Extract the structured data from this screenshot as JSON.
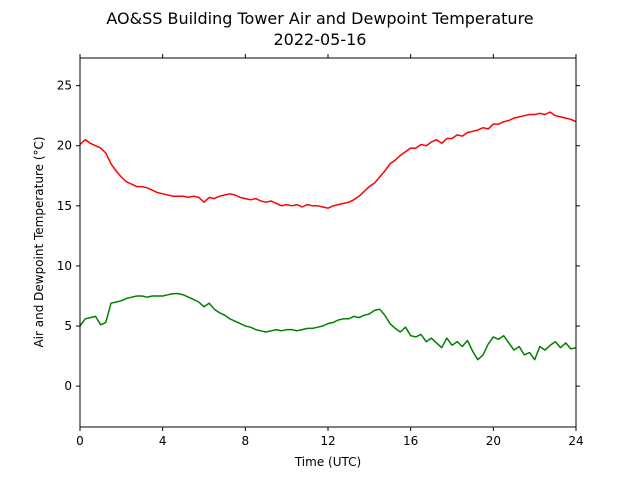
{
  "chart_data": {
    "type": "line",
    "title": "AO&SS Building Tower Air and Dewpoint Temperature",
    "subtitle": "2022-05-16",
    "xlabel": "Time (UTC)",
    "ylabel": "Air and Dewpoint Temperature (°C)",
    "xlim": [
      0,
      24
    ],
    "ylim": [
      -3.4,
      27.3
    ],
    "xticks": [
      0,
      4,
      8,
      12,
      16,
      20,
      24
    ],
    "yticks": [
      0,
      5,
      10,
      15,
      20,
      25
    ],
    "grid": false,
    "legend": "none",
    "series": [
      {
        "color": "#ff0000",
        "x": [
          0,
          0.25,
          0.5,
          0.75,
          1.0,
          1.25,
          1.5,
          1.75,
          2.0,
          2.25,
          2.5,
          2.75,
          3.0,
          3.25,
          3.5,
          3.75,
          4.0,
          4.25,
          4.5,
          4.75,
          5.0,
          5.25,
          5.5,
          5.75,
          6.0,
          6.25,
          6.5,
          6.75,
          7.0,
          7.25,
          7.5,
          7.75,
          8.0,
          8.25,
          8.5,
          8.75,
          9.0,
          9.25,
          9.5,
          9.75,
          10.0,
          10.25,
          10.5,
          10.75,
          11.0,
          11.25,
          11.5,
          11.75,
          12.0,
          12.25,
          12.5,
          12.75,
          13.0,
          13.25,
          13.5,
          13.75,
          14.0,
          14.25,
          14.5,
          14.75,
          15.0,
          15.25,
          15.5,
          15.75,
          16.0,
          16.25,
          16.5,
          16.75,
          17.0,
          17.25,
          17.5,
          17.75,
          18.0,
          18.25,
          18.5,
          18.75,
          19.0,
          19.25,
          19.5,
          19.75,
          20.0,
          20.25,
          20.5,
          20.75,
          21.0,
          21.25,
          21.5,
          21.75,
          22.0,
          22.25,
          22.5,
          22.75,
          23.0,
          23.25,
          23.5,
          23.75,
          24.0
        ],
        "values": [
          20.1,
          20.5,
          20.2,
          20.0,
          19.8,
          19.4,
          18.5,
          17.9,
          17.4,
          17.0,
          16.8,
          16.6,
          16.6,
          16.5,
          16.3,
          16.1,
          16.0,
          15.9,
          15.8,
          15.8,
          15.8,
          15.7,
          15.8,
          15.7,
          15.3,
          15.7,
          15.6,
          15.8,
          15.9,
          16.0,
          15.9,
          15.7,
          15.6,
          15.5,
          15.6,
          15.4,
          15.3,
          15.4,
          15.2,
          15.0,
          15.1,
          15.0,
          15.1,
          14.9,
          15.1,
          15.0,
          15.0,
          14.9,
          14.8,
          15.0,
          15.1,
          15.2,
          15.3,
          15.5,
          15.8,
          16.2,
          16.6,
          16.9,
          17.4,
          17.9,
          18.5,
          18.8,
          19.2,
          19.5,
          19.8,
          19.8,
          20.1,
          20.0,
          20.3,
          20.5,
          20.2,
          20.6,
          20.6,
          20.9,
          20.8,
          21.1,
          21.2,
          21.3,
          21.5,
          21.4,
          21.8,
          21.8,
          22.0,
          22.1,
          22.3,
          22.4,
          22.5,
          22.6,
          22.6,
          22.7,
          22.6,
          22.8,
          22.5,
          22.4,
          22.3,
          22.2,
          22.0
        ]
      },
      {
        "color": "#008000",
        "x": [
          0,
          0.25,
          0.5,
          0.75,
          1.0,
          1.25,
          1.5,
          1.75,
          2.0,
          2.25,
          2.5,
          2.75,
          3.0,
          3.25,
          3.5,
          3.75,
          4.0,
          4.25,
          4.5,
          4.75,
          5.0,
          5.25,
          5.5,
          5.75,
          6.0,
          6.25,
          6.5,
          6.75,
          7.0,
          7.25,
          7.5,
          7.75,
          8.0,
          8.25,
          8.5,
          8.75,
          9.0,
          9.25,
          9.5,
          9.75,
          10.0,
          10.25,
          10.5,
          10.75,
          11.0,
          11.25,
          11.5,
          11.75,
          12.0,
          12.25,
          12.5,
          12.75,
          13.0,
          13.25,
          13.5,
          13.75,
          14.0,
          14.25,
          14.5,
          14.75,
          15.0,
          15.25,
          15.5,
          15.75,
          16.0,
          16.25,
          16.5,
          16.75,
          17.0,
          17.25,
          17.5,
          17.75,
          18.0,
          18.25,
          18.5,
          18.75,
          19.0,
          19.25,
          19.5,
          19.75,
          20.0,
          20.25,
          20.5,
          20.75,
          21.0,
          21.25,
          21.5,
          21.75,
          22.0,
          22.25,
          22.5,
          22.75,
          23.0,
          23.25,
          23.5,
          23.75,
          24.0
        ],
        "values": [
          5.0,
          5.6,
          5.7,
          5.8,
          5.1,
          5.3,
          6.9,
          7.0,
          7.1,
          7.3,
          7.4,
          7.5,
          7.5,
          7.4,
          7.5,
          7.5,
          7.5,
          7.6,
          7.7,
          7.7,
          7.6,
          7.4,
          7.2,
          7.0,
          6.6,
          6.9,
          6.4,
          6.1,
          5.9,
          5.6,
          5.4,
          5.2,
          5.0,
          4.9,
          4.7,
          4.6,
          4.5,
          4.6,
          4.7,
          4.6,
          4.7,
          4.7,
          4.6,
          4.7,
          4.8,
          4.8,
          4.9,
          5.0,
          5.2,
          5.3,
          5.5,
          5.6,
          5.6,
          5.8,
          5.7,
          5.9,
          6.0,
          6.3,
          6.4,
          5.9,
          5.2,
          4.8,
          4.5,
          4.9,
          4.2,
          4.1,
          4.3,
          3.7,
          4.0,
          3.6,
          3.2,
          4.0,
          3.4,
          3.7,
          3.3,
          3.8,
          2.9,
          2.2,
          2.6,
          3.5,
          4.1,
          3.9,
          4.2,
          3.6,
          3.0,
          3.3,
          2.6,
          2.8,
          2.2,
          3.3,
          3.0,
          3.4,
          3.7,
          3.2,
          3.6,
          3.1,
          3.2
        ]
      }
    ]
  }
}
